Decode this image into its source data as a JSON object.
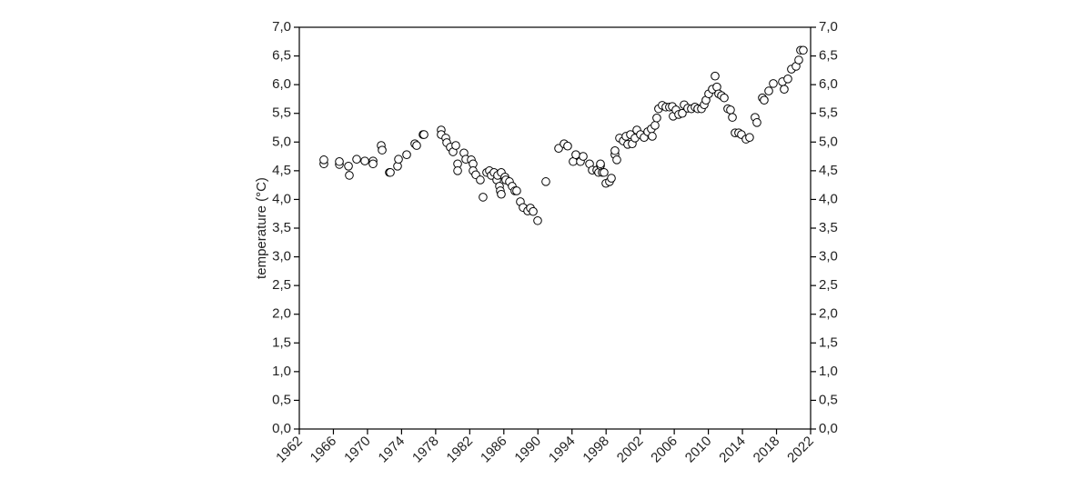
{
  "chart_data": {
    "type": "scatter",
    "y_label": "temperature (°C)",
    "color": "#000000",
    "xlim": [
      1962,
      2022
    ],
    "xticks": [
      1962,
      1966,
      1970,
      1974,
      1978,
      1982,
      1986,
      1990,
      1994,
      1998,
      2002,
      2006,
      2010,
      2014,
      2018,
      2022
    ],
    "ylim": [
      0,
      7
    ],
    "yticks": [
      {
        "value": 0,
        "label": "0,0"
      },
      {
        "value": 0.5,
        "label": "0,5"
      },
      {
        "value": 1,
        "label": "1,0"
      },
      {
        "value": 1.5,
        "label": "1,5"
      },
      {
        "value": 2,
        "label": "2,0"
      },
      {
        "value": 2.5,
        "label": "2,5"
      },
      {
        "value": 3,
        "label": "3,0"
      },
      {
        "value": 3.5,
        "label": "3,5"
      },
      {
        "value": 4,
        "label": "4,0"
      },
      {
        "value": 4.5,
        "label": "4,5"
      },
      {
        "value": 5,
        "label": "5,0"
      },
      {
        "value": 5.5,
        "label": "5,5"
      },
      {
        "value": 6,
        "label": "6,0"
      },
      {
        "value": 6.5,
        "label": "6,5"
      },
      {
        "value": 7,
        "label": "7,0"
      }
    ],
    "right_axis_ticks": true,
    "x": [
      1964.88,
      1964.88,
      1966.7,
      1966.7,
      1967.77,
      1967.87,
      1968.73,
      1969.69,
      1970.65,
      1970.65,
      1971.61,
      1971.72,
      1972.57,
      1972.68,
      1973.53,
      1973.64,
      1974.6,
      1975.56,
      1975.77,
      1976.52,
      1976.63,
      1978.65,
      1978.65,
      1979.19,
      1979.3,
      1979.72,
      1980.04,
      1980.36,
      1980.58,
      1980.58,
      1981.32,
      1981.54,
      1982.18,
      1982.39,
      1982.39,
      1982.71,
      1983.24,
      1983.56,
      1983.99,
      1984.31,
      1984.53,
      1984.85,
      1985.17,
      1985.27,
      1985.49,
      1985.59,
      1985.7,
      1985.7,
      1986.13,
      1986.23,
      1986.66,
      1986.98,
      1987.3,
      1987.51,
      1987.94,
      1988.26,
      1988.8,
      1989.12,
      1989.44,
      1989.97,
      1990.93,
      1992.43,
      1993.07,
      1993.49,
      1994.13,
      1994.45,
      1994.99,
      1995.31,
      1996.06,
      1996.38,
      1996.91,
      1997.12,
      1997.34,
      1997.34,
      1997.55,
      1997.76,
      1997.98,
      1998.4,
      1998.62,
      1999.04,
      1999.04,
      1999.26,
      1999.58,
      2000.01,
      2000.33,
      2000.54,
      2000.86,
      2001.07,
      2001.39,
      2001.61,
      2002.03,
      2002.46,
      2002.89,
      2003.31,
      2003.42,
      2003.74,
      2003.95,
      2004.16,
      2004.59,
      2005.02,
      2005.44,
      2005.77,
      2005.87,
      2006.2,
      2006.52,
      2006.94,
      2007.16,
      2007.58,
      2008.01,
      2008.44,
      2008.76,
      2009.19,
      2009.51,
      2009.72,
      2010.04,
      2010.47,
      2010.79,
      2011.0,
      2011.21,
      2011.54,
      2011.86,
      2012.28,
      2012.6,
      2012.82,
      2013.14,
      2013.56,
      2013.88,
      2014.42,
      2014.84,
      2015.48,
      2015.7,
      2016.34,
      2016.55,
      2017.09,
      2017.62,
      2018.69,
      2018.9,
      2019.33,
      2019.75,
      2020.29,
      2020.61,
      2020.82,
      2021.14
    ],
    "values": [
      4.62,
      4.69,
      4.61,
      4.66,
      4.58,
      4.42,
      4.7,
      4.67,
      4.67,
      4.62,
      4.94,
      4.86,
      4.47,
      4.47,
      4.58,
      4.7,
      4.78,
      4.97,
      4.94,
      5.13,
      5.13,
      5.21,
      5.13,
      5.07,
      4.99,
      4.91,
      4.83,
      4.94,
      4.62,
      4.5,
      4.81,
      4.7,
      4.69,
      4.62,
      4.5,
      4.43,
      4.34,
      4.04,
      4.47,
      4.5,
      4.42,
      4.47,
      4.34,
      4.42,
      4.23,
      4.15,
      4.09,
      4.47,
      4.39,
      4.34,
      4.31,
      4.23,
      4.15,
      4.15,
      3.96,
      3.86,
      3.8,
      3.85,
      3.79,
      3.63,
      4.31,
      4.89,
      4.97,
      4.93,
      4.66,
      4.78,
      4.66,
      4.75,
      4.62,
      4.51,
      4.51,
      4.47,
      4.59,
      4.62,
      4.47,
      4.47,
      4.28,
      4.31,
      4.37,
      4.78,
      4.85,
      4.69,
      5.07,
      5.02,
      5.1,
      4.96,
      5.13,
      4.97,
      5.07,
      5.21,
      5.13,
      5.08,
      5.18,
      5.23,
      5.1,
      5.29,
      5.42,
      5.58,
      5.64,
      5.61,
      5.61,
      5.62,
      5.45,
      5.56,
      5.48,
      5.5,
      5.65,
      5.59,
      5.58,
      5.61,
      5.58,
      5.58,
      5.65,
      5.73,
      5.84,
      5.92,
      6.15,
      5.96,
      5.84,
      5.81,
      5.77,
      5.58,
      5.56,
      5.43,
      5.16,
      5.16,
      5.13,
      5.05,
      5.08,
      5.43,
      5.34,
      5.77,
      5.73,
      5.89,
      6.02,
      6.05,
      5.92,
      6.1,
      6.27,
      6.32,
      6.43,
      6.6,
      6.6
    ]
  }
}
